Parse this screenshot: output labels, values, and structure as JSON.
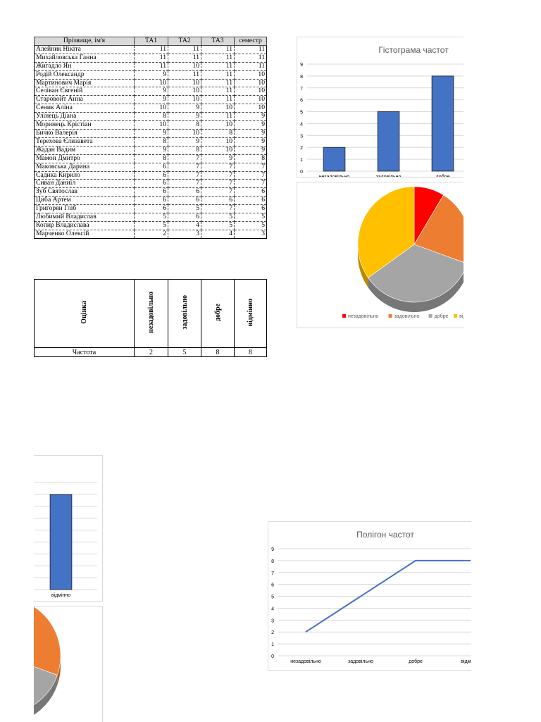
{
  "grades_table": {
    "headers": [
      "Прізвище, ім'я",
      "ТА1",
      "ТА2",
      "ТА3",
      "семестр"
    ],
    "rows": [
      {
        "name": "Алейник Нікіта",
        "ta1": "11",
        "ta2": "11",
        "ta3": "11",
        "sem": "11"
      },
      {
        "name": "Михайловська Ганна",
        "ta1": "11",
        "ta2": "11",
        "ta3": "11",
        "sem": "11"
      },
      {
        "name": "Жигадло Ян",
        "ta1": "11",
        "ta2": "10",
        "ta3": "11",
        "sem": "11"
      },
      {
        "name": "Родій Олександр",
        "ta1": "9",
        "ta2": "11",
        "ta3": "11",
        "sem": "10"
      },
      {
        "name": "Мартинович Марія",
        "ta1": "10",
        "ta2": "10",
        "ta3": "11",
        "sem": "10"
      },
      {
        "name": "Селіван Євгеній",
        "ta1": "9",
        "ta2": "10",
        "ta3": "11",
        "sem": "10"
      },
      {
        "name": "Старовойт Анна",
        "ta1": "9",
        "ta2": "10",
        "ta3": "11",
        "sem": "10"
      },
      {
        "name": "Сеник Аліна",
        "ta1": "10",
        "ta2": "9",
        "ta3": "10",
        "sem": "10"
      },
      {
        "name": "Улінець Діана",
        "ta1": "8",
        "ta2": "9",
        "ta3": "11",
        "sem": "9"
      },
      {
        "name": "Моринець Крістіан",
        "ta1": "10",
        "ta2": "8",
        "ta3": "10",
        "sem": "9"
      },
      {
        "name": "Бичко Валерія",
        "ta1": "9",
        "ta2": "10",
        "ta3": "8",
        "sem": "9"
      },
      {
        "name": "Терехова Єлизавета",
        "ta1": "8",
        "ta2": "9",
        "ta3": "10",
        "sem": "9"
      },
      {
        "name": "Жадан Вадим",
        "ta1": "9",
        "ta2": "8",
        "ta3": "10",
        "sem": "9"
      },
      {
        "name": "Мамон Дмитро",
        "ta1": "8",
        "ta2": "7",
        "ta3": "9",
        "sem": "8"
      },
      {
        "name": "Маковська Дарина",
        "ta1": "6",
        "ta2": "7",
        "ta3": "7",
        "sem": "7"
      },
      {
        "name": "Садика Кирило",
        "ta1": "6",
        "ta2": "7",
        "ta3": "7",
        "sem": "7"
      },
      {
        "name": "Сиван Даниїл",
        "ta1": "6",
        "ta2": "7",
        "ta3": "7",
        "sem": "7"
      },
      {
        "name": "Зуб Святослав",
        "ta1": "6",
        "ta2": "6",
        "ta3": "7",
        "sem": "6"
      },
      {
        "name": "Циба Артем",
        "ta1": "6",
        "ta2": "6",
        "ta3": "6",
        "sem": "6"
      },
      {
        "name": "Григорян Гліб",
        "ta1": "6",
        "ta2": "5",
        "ta3": "7",
        "sem": "6"
      },
      {
        "name": "Любимий Владислав",
        "ta1": "5",
        "ta2": "6",
        "ta3": "5",
        "sem": "5"
      },
      {
        "name": "Копир Владислава",
        "ta1": "5",
        "ta2": "4",
        "ta3": "5",
        "sem": "5"
      },
      {
        "name": "Марченко Олексій",
        "ta1": "2",
        "ta2": "3",
        "ta3": "4",
        "sem": "3"
      }
    ]
  },
  "freq_table": {
    "header_label": "Оцінка",
    "row_label": "Частота",
    "columns": [
      "незадовільно",
      "задовільно",
      "добре",
      "відмінно"
    ],
    "values": [
      "2",
      "5",
      "8",
      "8"
    ]
  },
  "chart_data": [
    {
      "type": "bar",
      "title": "Гістограма частот",
      "categories": [
        "незадовільно",
        "задовільно",
        "добре",
        "відмінно"
      ],
      "values": [
        2,
        5,
        8,
        8
      ],
      "ylim": [
        0,
        9
      ],
      "yticks": [
        "0",
        "1",
        "2",
        "3",
        "4",
        "5",
        "6",
        "7",
        "8",
        "9"
      ],
      "color": "#4472c4",
      "grid": true
    },
    {
      "type": "pie",
      "categories": [
        "незадовільно",
        "задовільно",
        "добре",
        "відмінно"
      ],
      "values": [
        2,
        5,
        8,
        8
      ],
      "colors": [
        "#ff0000",
        "#ed7d31",
        "#a5a5a5",
        "#ffc000"
      ],
      "legend": [
        "незадовільно",
        "задовільно",
        "добре",
        "відмінно"
      ],
      "legend_position": "bottom"
    },
    {
      "type": "line",
      "title": "Полігон частот",
      "categories": [
        "незадовільно",
        "задовільно",
        "добре",
        "відмінно"
      ],
      "values": [
        2,
        5,
        8,
        8
      ],
      "ylim": [
        0,
        9
      ],
      "yticks": [
        "0",
        "1",
        "2",
        "3",
        "4",
        "5",
        "6",
        "7",
        "8",
        "9"
      ],
      "color": "#4472c4",
      "grid": true
    }
  ]
}
